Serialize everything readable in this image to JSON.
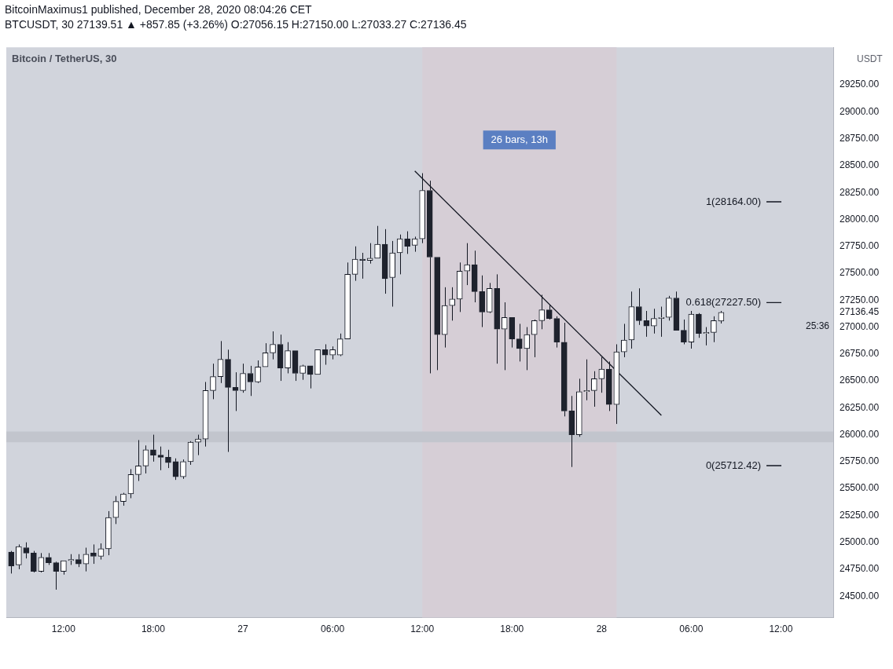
{
  "chart_data": {
    "type": "candlestick",
    "title": "Bitcoin / TetherUS, 30",
    "ylabel": "USDT",
    "x": [
      "2020-12-26T08:30",
      "2020-12-26T09:00",
      "2020-12-26T09:30",
      "2020-12-26T10:00",
      "2020-12-26T10:30",
      "2020-12-26T11:00",
      "2020-12-26T11:30",
      "2020-12-26T12:00",
      "2020-12-26T12:30",
      "2020-12-26T13:00",
      "2020-12-26T13:30",
      "2020-12-26T14:00",
      "2020-12-26T14:30",
      "2020-12-26T15:00",
      "2020-12-26T15:30",
      "2020-12-26T16:00",
      "2020-12-26T16:30",
      "2020-12-26T17:00",
      "2020-12-26T17:30",
      "2020-12-26T18:00",
      "2020-12-26T18:30",
      "2020-12-26T19:00",
      "2020-12-26T19:30",
      "2020-12-26T20:00",
      "2020-12-26T20:30",
      "2020-12-26T21:00",
      "2020-12-26T21:30",
      "2020-12-26T22:00",
      "2020-12-26T22:30",
      "2020-12-26T23:00",
      "2020-12-26T23:30",
      "2020-12-27T00:00",
      "2020-12-27T00:30",
      "2020-12-27T01:00",
      "2020-12-27T01:30",
      "2020-12-27T02:00",
      "2020-12-27T02:30",
      "2020-12-27T03:00",
      "2020-12-27T03:30",
      "2020-12-27T04:00",
      "2020-12-27T04:30",
      "2020-12-27T05:00",
      "2020-12-27T05:30",
      "2020-12-27T06:00",
      "2020-12-27T06:30",
      "2020-12-27T07:00",
      "2020-12-27T07:30",
      "2020-12-27T08:00",
      "2020-12-27T08:30",
      "2020-12-27T09:00",
      "2020-12-27T09:30",
      "2020-12-27T10:00",
      "2020-12-27T10:30",
      "2020-12-27T11:00",
      "2020-12-27T11:30",
      "2020-12-27T12:00",
      "2020-12-27T12:30",
      "2020-12-27T13:00",
      "2020-12-27T13:30",
      "2020-12-27T14:00",
      "2020-12-27T14:30",
      "2020-12-27T15:00",
      "2020-12-27T15:30",
      "2020-12-27T16:00",
      "2020-12-27T16:30",
      "2020-12-27T17:00",
      "2020-12-27T17:30",
      "2020-12-27T18:00",
      "2020-12-27T18:30",
      "2020-12-27T19:00",
      "2020-12-27T19:30",
      "2020-12-27T20:00",
      "2020-12-27T20:30",
      "2020-12-27T21:00",
      "2020-12-27T21:30",
      "2020-12-27T22:00",
      "2020-12-27T22:30",
      "2020-12-27T23:00",
      "2020-12-27T23:30",
      "2020-12-28T00:00",
      "2020-12-28T00:30",
      "2020-12-28T01:00",
      "2020-12-28T01:30",
      "2020-12-28T02:00",
      "2020-12-28T02:30",
      "2020-12-28T03:00",
      "2020-12-28T03:30",
      "2020-12-28T04:00",
      "2020-12-28T04:30",
      "2020-12-28T05:00",
      "2020-12-28T05:30",
      "2020-12-28T06:00",
      "2020-12-28T06:30",
      "2020-12-28T07:00",
      "2020-12-28T07:30",
      "2020-12-28T08:00"
    ],
    "ohlc": [
      [
        24910,
        24920,
        24710,
        24780
      ],
      [
        24790,
        24980,
        24750,
        24960
      ],
      [
        24950,
        25000,
        24850,
        24900
      ],
      [
        24900,
        24920,
        24720,
        24730
      ],
      [
        24730,
        24900,
        24720,
        24860
      ],
      [
        24860,
        24900,
        24790,
        24810
      ],
      [
        24810,
        24820,
        24560,
        24730
      ],
      [
        24730,
        24830,
        24700,
        24830
      ],
      [
        24830,
        24890,
        24790,
        24840
      ],
      [
        24840,
        24890,
        24770,
        24800
      ],
      [
        24800,
        24950,
        24730,
        24890
      ],
      [
        24900,
        24980,
        24800,
        24870
      ],
      [
        24870,
        24990,
        24840,
        24940
      ],
      [
        24940,
        25290,
        24880,
        25230
      ],
      [
        25230,
        25430,
        25170,
        25380
      ],
      [
        25380,
        25460,
        25340,
        25450
      ],
      [
        25450,
        25680,
        25410,
        25630
      ],
      [
        25630,
        25950,
        25570,
        25710
      ],
      [
        25710,
        25900,
        25640,
        25860
      ],
      [
        25860,
        26000,
        25750,
        25810
      ],
      [
        25810,
        25890,
        25670,
        25790
      ],
      [
        25790,
        25860,
        25690,
        25740
      ],
      [
        25750,
        25780,
        25580,
        25610
      ],
      [
        25610,
        25770,
        25590,
        25750
      ],
      [
        25750,
        25940,
        25720,
        25930
      ],
      [
        25930,
        26000,
        25810,
        25960
      ],
      [
        25960,
        26490,
        25890,
        26410
      ],
      [
        26410,
        26660,
        26330,
        26540
      ],
      [
        26540,
        26870,
        26480,
        26700
      ],
      [
        26700,
        26790,
        25840,
        26440
      ],
      [
        26440,
        26580,
        26220,
        26410
      ],
      [
        26410,
        26660,
        26390,
        26570
      ],
      [
        26570,
        26640,
        26360,
        26490
      ],
      [
        26490,
        26690,
        26480,
        26630
      ],
      [
        26630,
        26850,
        26630,
        26760
      ],
      [
        26760,
        26960,
        26700,
        26840
      ],
      [
        26840,
        26930,
        26500,
        26620
      ],
      [
        26620,
        26860,
        26570,
        26780
      ],
      [
        26780,
        26780,
        26500,
        26570
      ],
      [
        26570,
        26650,
        26510,
        26640
      ],
      [
        26640,
        26640,
        26430,
        26560
      ],
      [
        26560,
        26790,
        26560,
        26790
      ],
      [
        26790,
        26840,
        26650,
        26740
      ],
      [
        26740,
        26820,
        26700,
        26790
      ],
      [
        26740,
        26940,
        26730,
        26890
      ],
      [
        26890,
        27600,
        26890,
        27490
      ],
      [
        27490,
        27750,
        27430,
        27630
      ],
      [
        27630,
        27690,
        27450,
        27620
      ],
      [
        27620,
        27780,
        27590,
        27640
      ],
      [
        27640,
        27940,
        27640,
        27770
      ],
      [
        27770,
        27910,
        27310,
        27450
      ],
      [
        27460,
        27800,
        27190,
        27690
      ],
      [
        27690,
        27860,
        27490,
        27820
      ],
      [
        27820,
        27890,
        27680,
        27750
      ],
      [
        27760,
        27840,
        27700,
        27820
      ],
      [
        27820,
        28430,
        27780,
        28270
      ],
      [
        28270,
        28360,
        26570,
        27650
      ],
      [
        27650,
        27650,
        26600,
        26930
      ],
      [
        26930,
        27370,
        26810,
        27200
      ],
      [
        27200,
        27370,
        27060,
        27260
      ],
      [
        27260,
        27600,
        27140,
        27520
      ],
      [
        27520,
        27780,
        27390,
        27580
      ],
      [
        27580,
        27710,
        27230,
        27330
      ],
      [
        27330,
        27480,
        27000,
        27140
      ],
      [
        27140,
        27410,
        27130,
        27360
      ],
      [
        27360,
        27490,
        26660,
        26980
      ],
      [
        26980,
        27230,
        26600,
        27090
      ],
      [
        27090,
        27090,
        26810,
        26890
      ],
      [
        26890,
        27030,
        26680,
        26800
      ],
      [
        26800,
        27000,
        26600,
        26930
      ],
      [
        26930,
        27070,
        26720,
        27060
      ],
      [
        27060,
        27300,
        26980,
        27160
      ],
      [
        27160,
        27210,
        27070,
        27080
      ],
      [
        27080,
        27100,
        26810,
        26860
      ],
      [
        26860,
        27040,
        26170,
        26220
      ],
      [
        26220,
        26360,
        25700,
        26000
      ],
      [
        26000,
        26520,
        25980,
        26400
      ],
      [
        26400,
        26700,
        26320,
        26410
      ],
      [
        26410,
        26590,
        26260,
        26520
      ],
      [
        26520,
        26720,
        26390,
        26610
      ],
      [
        26610,
        26680,
        26220,
        26280
      ],
      [
        26280,
        26840,
        26100,
        26770
      ],
      [
        26770,
        27030,
        26720,
        26880
      ],
      [
        26880,
        27330,
        26800,
        27190
      ],
      [
        27190,
        27360,
        27020,
        27060
      ],
      [
        27060,
        27150,
        26910,
        27010
      ],
      [
        27010,
        27170,
        26940,
        27080
      ],
      [
        27080,
        27190,
        26910,
        27090
      ],
      [
        27090,
        27290,
        27060,
        27270
      ],
      [
        27270,
        27330,
        26970,
        26970
      ],
      [
        26970,
        27070,
        26840,
        26860
      ],
      [
        26860,
        27150,
        26800,
        27120
      ],
      [
        27120,
        27130,
        26900,
        26940
      ],
      [
        26940,
        27000,
        26830,
        26950
      ],
      [
        26950,
        27100,
        26860,
        27060
      ],
      [
        27056.15,
        27150,
        27033.27,
        27136.45
      ]
    ],
    "series": [
      {
        "type": "line",
        "color": "#131722",
        "x": [
          "2020-12-27T11:30",
          "2020-12-28T04:00"
        ],
        "values": [
          28450,
          26180
        ]
      }
    ],
    "xlim": [
      "2020-12-26T08:10",
      "2020-12-28T15:30"
    ],
    "xticks": [
      {
        "value": "2020-12-26T12:00",
        "label": "12:00"
      },
      {
        "value": "2020-12-26T18:00",
        "label": "18:00"
      },
      {
        "value": "2020-12-27T00:00",
        "label": "27"
      },
      {
        "value": "2020-12-27T06:00",
        "label": "06:00"
      },
      {
        "value": "2020-12-27T12:00",
        "label": "12:00"
      },
      {
        "value": "2020-12-27T18:00",
        "label": "18:00"
      },
      {
        "value": "2020-12-28T00:00",
        "label": "28"
      },
      {
        "value": "2020-12-28T06:00",
        "label": "06:00"
      },
      {
        "value": "2020-12-28T12:00",
        "label": "12:00"
      }
    ],
    "ylim": [
      24300,
      29600
    ],
    "yticks": [
      {
        "value": 24500,
        "label": "24500.00"
      },
      {
        "value": 24750,
        "label": "24750.00"
      },
      {
        "value": 25000,
        "label": "25000.00"
      },
      {
        "value": 25250,
        "label": "25250.00"
      },
      {
        "value": 25500,
        "label": "25500.00"
      },
      {
        "value": 25750,
        "label": "25750.00"
      },
      {
        "value": 26000,
        "label": "26000.00"
      },
      {
        "value": 26250,
        "label": "26250.00"
      },
      {
        "value": 26500,
        "label": "26500.00"
      },
      {
        "value": 26750,
        "label": "26750.00"
      },
      {
        "value": 27000,
        "label": "27000.00"
      },
      {
        "value": 27136.45,
        "label": "27136.45"
      },
      {
        "value": 27250,
        "label": "27250.00"
      },
      {
        "value": 27500,
        "label": "27500.00"
      },
      {
        "value": 27750,
        "label": "27750.00"
      },
      {
        "value": 28000,
        "label": "28000.00"
      },
      {
        "value": 28250,
        "label": "28250.00"
      },
      {
        "value": 28500,
        "label": "28500.00"
      },
      {
        "value": 28750,
        "label": "28750.00"
      },
      {
        "value": 29000,
        "label": "29000.00"
      },
      {
        "value": 29250,
        "label": "29250.00"
      }
    ],
    "bands": [
      {
        "axis": "x",
        "from": "2020-12-27T12:00",
        "to": "2020-12-28T01:00",
        "label": "26 bars, 13h",
        "color": "#d6ced6"
      },
      {
        "axis": "y",
        "from": 25930,
        "to": 26030,
        "color": "#c2c5cd"
      }
    ],
    "ref_lines": [
      {
        "axis": "y",
        "value": 28164,
        "label": "1(28164.00)",
        "color": "#131722"
      },
      {
        "axis": "y",
        "value": 27227.5,
        "label": "0.618(27227.50)",
        "color": "#131722"
      },
      {
        "axis": "y",
        "value": 25712.42,
        "label": "0(25712.42)",
        "color": "#131722"
      }
    ],
    "annotations": [
      "BitcoinMaximus1 published, December 28, 2020 08:04:26 CET",
      "BTCUSDT, 30  27139.51 ▲ +857.85 (+3.26%)  O:27056.15  H:27150.00  L:27033.27  C:27136.45",
      "25:36"
    ]
  }
}
